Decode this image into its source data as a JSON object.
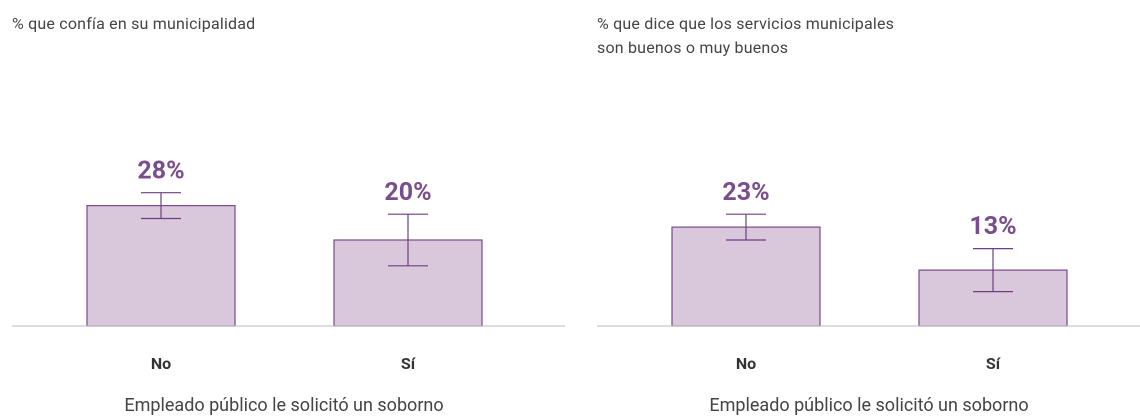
{
  "chart_data": [
    {
      "type": "bar",
      "title": "% que confía en su municipalidad",
      "categories": [
        "No",
        "Sí"
      ],
      "values": [
        28,
        20
      ],
      "errors": [
        3,
        6
      ],
      "value_labels": [
        "28%",
        "20%"
      ],
      "xlabel": "Empleado público le solicitó un soborno",
      "color": "#d9c8dc",
      "edge_color": "#7b4a8a",
      "ylim": [
        0,
        40
      ]
    },
    {
      "type": "bar",
      "title": "% que dice que los servicios municipales\nson buenos o muy buenos",
      "categories": [
        "No",
        "Sí"
      ],
      "values": [
        23,
        13
      ],
      "errors": [
        3,
        5
      ],
      "value_labels": [
        "23%",
        "13%"
      ],
      "xlabel": "Empleado público le solicitó un soborno",
      "color": "#d9c8dc",
      "edge_color": "#7b4a8a",
      "ylim": [
        0,
        40
      ]
    }
  ]
}
